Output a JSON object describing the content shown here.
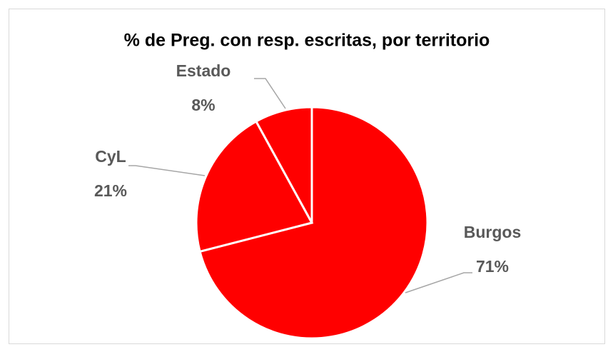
{
  "chart_data": {
    "type": "pie",
    "title": "% de Preg. con resp. escritas, por territorio",
    "categories": [
      "Burgos",
      "CyL",
      "Estado"
    ],
    "values": [
      71,
      21,
      8
    ],
    "value_labels": [
      "71%",
      "21%",
      "8%"
    ],
    "color": "#ff0000"
  }
}
